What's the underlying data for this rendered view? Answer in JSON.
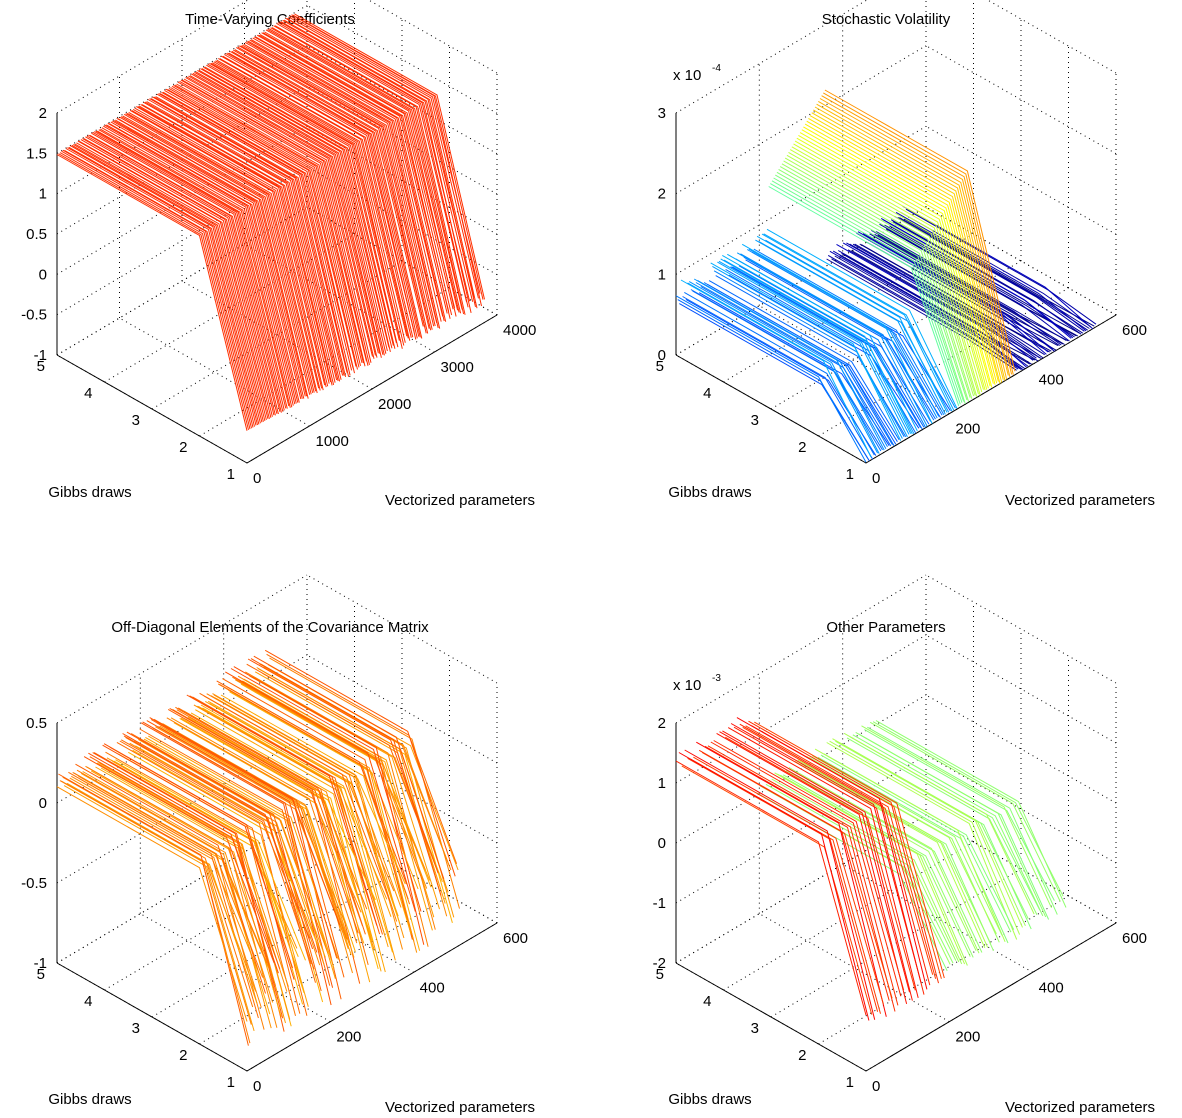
{
  "chart_data": [
    {
      "type": "surface-3d",
      "title": "Time-Varying Coefficients",
      "xlabel": "Vectorized parameters",
      "ylabel": "Gibbs draws",
      "zlabel": "",
      "x_ticks": [
        "0",
        "1000",
        "2000",
        "3000",
        "4000"
      ],
      "y_ticks": [
        "1",
        "2",
        "3",
        "4",
        "5"
      ],
      "z_ticks": [
        "-1",
        "-0.5",
        "0",
        "0.5",
        "1",
        "1.5",
        "2"
      ],
      "xlim": [
        0,
        4000
      ],
      "ylim": [
        1,
        5
      ],
      "zlim": [
        -1,
        2
      ],
      "z_multiplier": "",
      "grid": true,
      "colormap": "jet",
      "description_values": {
        "surface_top_level": 1.5,
        "surface_low_level": -0.6
      }
    },
    {
      "type": "surface-3d",
      "title": "Stochastic Volatility",
      "xlabel": "Vectorized parameters",
      "ylabel": "Gibbs draws",
      "zlabel": "",
      "x_ticks": [
        "0",
        "200",
        "400",
        "600"
      ],
      "y_ticks": [
        "1",
        "2",
        "3",
        "4",
        "5"
      ],
      "z_ticks": [
        "0",
        "1",
        "2",
        "3"
      ],
      "xlim": [
        0,
        600
      ],
      "ylim": [
        1,
        5
      ],
      "zlim": [
        0,
        3
      ],
      "z_multiplier": "x 10",
      "z_exponent": "-4",
      "grid": true,
      "colormap": "jet"
    },
    {
      "type": "surface-3d",
      "title": "Off-Diagonal Elements of the Covariance Matrix",
      "xlabel": "Vectorized parameters",
      "ylabel": "Gibbs draws",
      "zlabel": "",
      "x_ticks": [
        "0",
        "200",
        "400",
        "600"
      ],
      "y_ticks": [
        "1",
        "2",
        "3",
        "4",
        "5"
      ],
      "z_ticks": [
        "-1",
        "-0.5",
        "0",
        "0.5"
      ],
      "xlim": [
        0,
        600
      ],
      "ylim": [
        1,
        5
      ],
      "zlim": [
        -1,
        0.5
      ],
      "z_multiplier": "",
      "grid": true,
      "colormap": "jet"
    },
    {
      "type": "surface-3d",
      "title": "Other Parameters",
      "xlabel": "Vectorized parameters",
      "ylabel": "Gibbs draws",
      "zlabel": "",
      "x_ticks": [
        "0",
        "200",
        "400",
        "600"
      ],
      "y_ticks": [
        "1",
        "2",
        "3",
        "4",
        "5"
      ],
      "z_ticks": [
        "-2",
        "-1",
        "0",
        "1",
        "2"
      ],
      "xlim": [
        0,
        600
      ],
      "ylim": [
        1,
        5
      ],
      "zlim": [
        -2,
        2
      ],
      "z_multiplier": "x 10",
      "z_exponent": "-3",
      "grid": true,
      "colormap": "jet"
    }
  ]
}
